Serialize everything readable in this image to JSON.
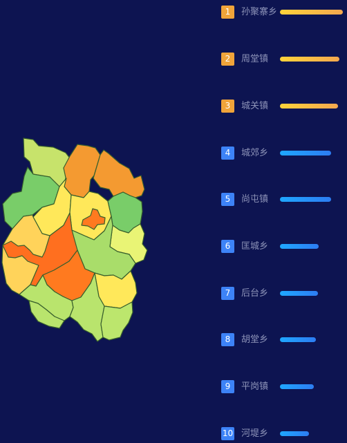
{
  "rankings": [
    {
      "rank": "1",
      "name": "孙聚寨乡",
      "level": 1.0,
      "tier": "top"
    },
    {
      "rank": "2",
      "name": "周堂镇",
      "level": 0.94,
      "tier": "top"
    },
    {
      "rank": "3",
      "name": "城关镇",
      "level": 0.92,
      "tier": "top"
    },
    {
      "rank": "4",
      "name": "城郊乡",
      "level": 0.81,
      "tier": "normal"
    },
    {
      "rank": "5",
      "name": "尚屯镇",
      "level": 0.81,
      "tier": "normal"
    },
    {
      "rank": "6",
      "name": "匡城乡",
      "level": 0.61,
      "tier": "normal"
    },
    {
      "rank": "7",
      "name": "后台乡",
      "level": 0.6,
      "tier": "normal"
    },
    {
      "rank": "8",
      "name": "胡堂乡",
      "level": 0.57,
      "tier": "normal"
    },
    {
      "rank": "9",
      "name": "平岗镇",
      "level": 0.54,
      "tier": "normal"
    },
    {
      "rank": "10",
      "name": "河堤乡",
      "level": 0.46,
      "tier": "normal"
    }
  ],
  "colors": {
    "background": "#0d1451",
    "top_badge": "#f0a43a",
    "normal_badge": "#3d83f7",
    "label": "#8d93b8",
    "map_border": "#385f2d"
  }
}
